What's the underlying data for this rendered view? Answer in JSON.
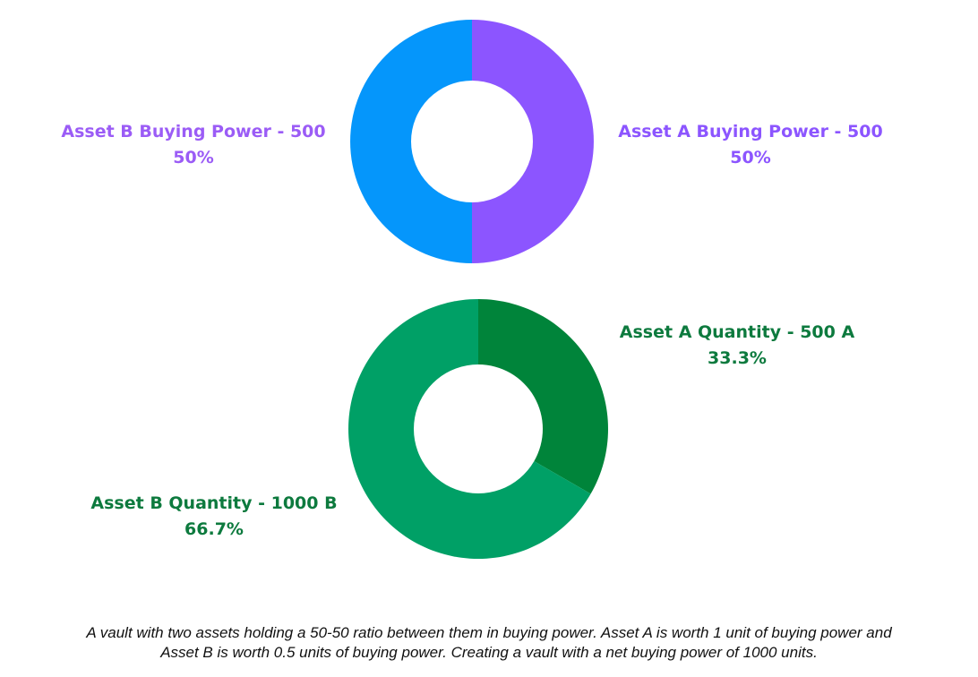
{
  "chart_data": [
    {
      "type": "pie",
      "variant": "donut",
      "slices": [
        {
          "label": "Asset A Buying Power - 500",
          "value": 500,
          "percent_label": "50%",
          "color": "#8c55ff",
          "label_color": "#8c55ff"
        },
        {
          "label": "Asset B Buying Power - 500",
          "value": 500,
          "percent_label": "50%",
          "color": "#0596fb",
          "label_color": "#9b5cf6"
        }
      ]
    },
    {
      "type": "pie",
      "variant": "donut",
      "slices": [
        {
          "label": "Asset A Quantity - 500 A",
          "value": 500,
          "percent_label": "33.3%",
          "color": "#00843a",
          "label_color": "#0d7a3e"
        },
        {
          "label": "Asset B Quantity - 1000 B",
          "value": 1000,
          "percent_label": "66.7%",
          "color": "#00a066",
          "label_color": "#0d7a3e"
        }
      ]
    }
  ],
  "caption": {
    "line1": "A vault with two assets holding a 50-50 ratio between them in buying power. Asset A is worth 1 unit of buying power and",
    "line2": "Asset B is worth 0.5 units of buying power. Creating a vault with a net buying power of 1000 units."
  }
}
